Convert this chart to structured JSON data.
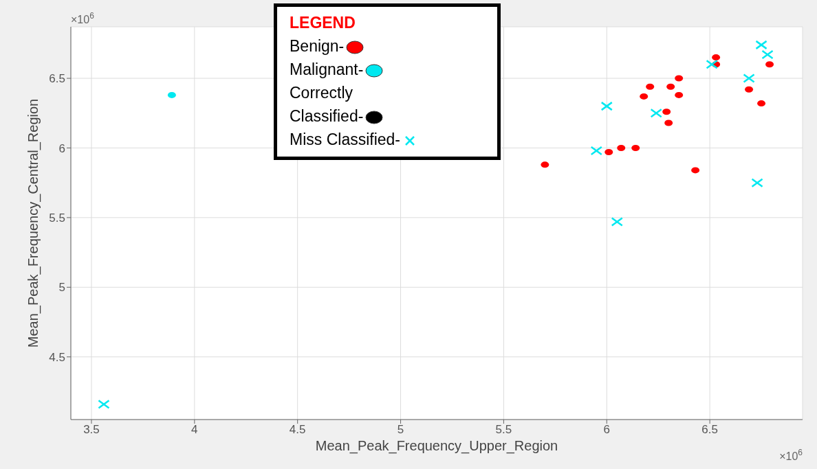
{
  "chart_data": {
    "type": "scatter",
    "xlabel": "Mean_Peak_Frequency_Upper_Region",
    "ylabel": "Mean_Peak_Frequency_Central_Region",
    "legend_title": "LEGEND",
    "legend": "top",
    "grid": true,
    "xlim": [
      3.4,
      6.95
    ],
    "xticks": [
      3.5,
      4,
      4.5,
      5,
      5.5,
      6,
      6.5
    ],
    "ylim": [
      4.05,
      6.87
    ],
    "yticks": [
      4.5,
      5,
      5.5,
      6,
      6.5
    ],
    "annotations": [
      "×10$^{6}$",
      "×10$^{6}$"
    ],
    "series": [
      {
        "name": "Benign-",
        "color": "#ff0000",
        "marker": "circle",
        "x": [
          5.7,
          6.01,
          6.07,
          6.14,
          6.18,
          6.21,
          6.29,
          6.3,
          6.31,
          6.35,
          6.35,
          6.43,
          6.53,
          6.53,
          6.69,
          6.75,
          6.79
        ],
        "values": [
          5.88,
          5.97,
          6.0,
          6.0,
          6.37,
          6.44,
          6.26,
          6.18,
          6.44,
          6.5,
          6.38,
          5.84,
          6.65,
          6.6,
          6.42,
          6.32,
          6.6
        ]
      },
      {
        "name": "Malignant-",
        "color": "#00e8f0",
        "marker": "circle",
        "x": [
          3.89
        ],
        "values": [
          6.38
        ]
      },
      {
        "name": "Correctly Classified-",
        "color": "#000000",
        "marker": "circle"
      },
      {
        "name": "Miss Classified-",
        "color": "#00e8f0",
        "marker": "cross",
        "x": [
          3.56,
          5.95,
          6.0,
          6.05,
          6.24,
          6.51,
          6.69,
          6.73,
          6.75,
          6.78
        ],
        "values": [
          4.16,
          5.98,
          6.3,
          5.47,
          6.25,
          6.6,
          6.5,
          5.75,
          6.74,
          6.67
        ]
      }
    ]
  }
}
